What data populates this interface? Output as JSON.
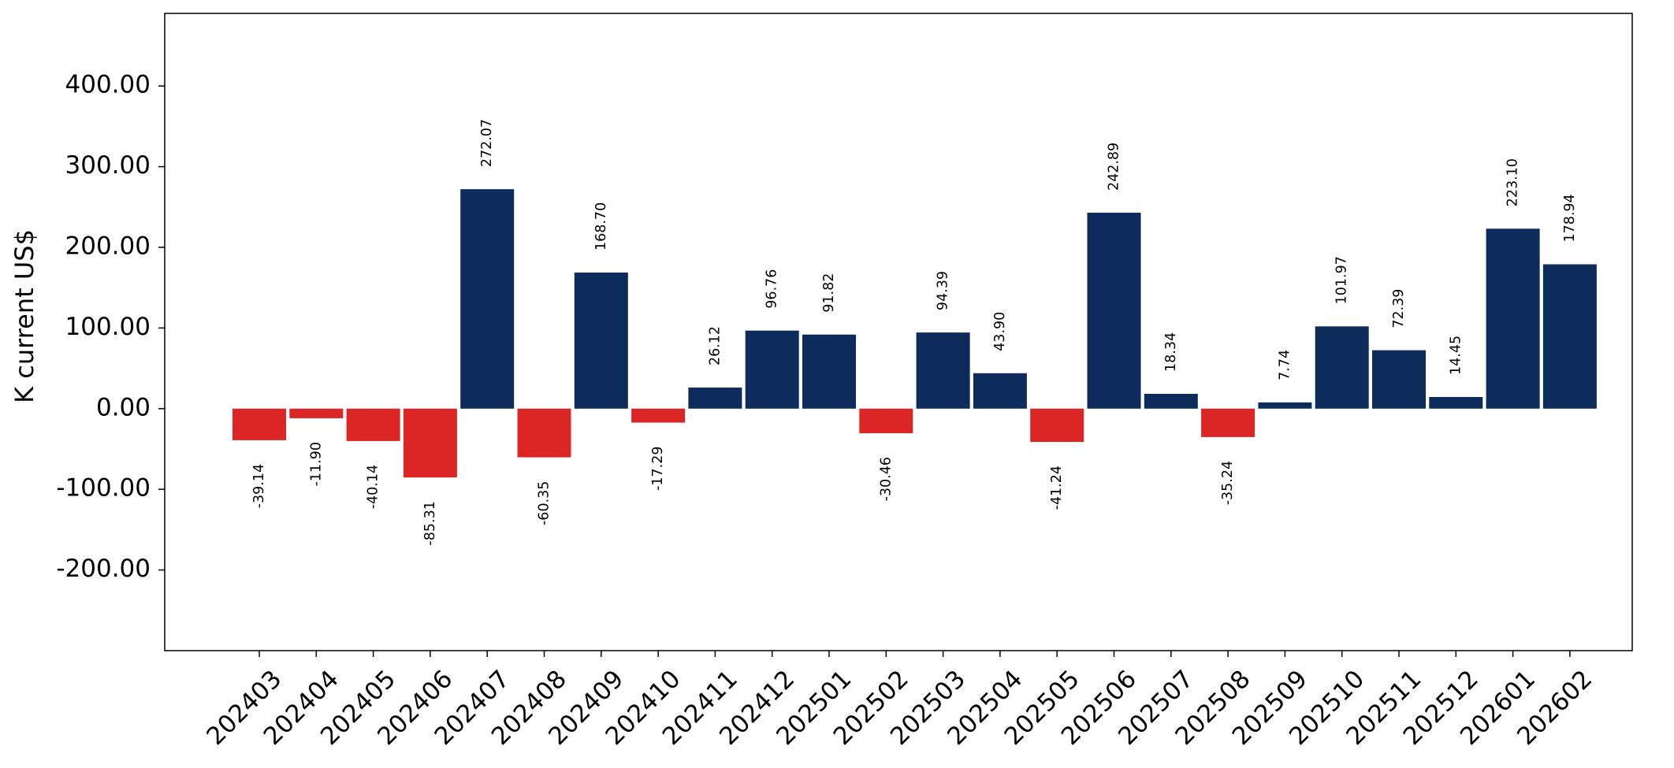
{
  "chart_data": {
    "type": "bar",
    "ylabel": "K current US$",
    "ylim": [
      -300,
      490
    ],
    "yticks": [
      -200,
      -100,
      0,
      100,
      200,
      300,
      400
    ],
    "tick_format_decimals": 2,
    "grid": false,
    "legend": "none",
    "colors": {
      "positive": "#0d2b5b",
      "negative": "#dc2626"
    },
    "categories": [
      "202403",
      "202404",
      "202405",
      "202406",
      "202407",
      "202408",
      "202409",
      "202410",
      "202411",
      "202412",
      "202501",
      "202502",
      "202503",
      "202504",
      "202505",
      "202506",
      "202507",
      "202508",
      "202509",
      "202510",
      "202511",
      "202512",
      "202601",
      "202602"
    ],
    "values": [
      -39.14,
      -11.9,
      -40.14,
      -85.31,
      272.07,
      -60.35,
      168.7,
      -17.29,
      26.12,
      96.76,
      91.82,
      -30.46,
      94.39,
      43.9,
      -41.24,
      242.89,
      18.34,
      -35.24,
      7.74,
      101.97,
      72.39,
      14.45,
      223.1,
      178.94
    ],
    "value_labels": [
      "-39.14",
      "-11.90",
      "-40.14",
      "-85.31",
      "272.07",
      "-60.35",
      "168.70",
      "-17.29",
      "26.12",
      "96.76",
      "91.82",
      "-30.46",
      "94.39",
      "43.90",
      "-41.24",
      "242.89",
      "18.34",
      "-35.24",
      "7.74",
      "101.97",
      "72.39",
      "14.45",
      "223.10",
      "178.94"
    ]
  }
}
